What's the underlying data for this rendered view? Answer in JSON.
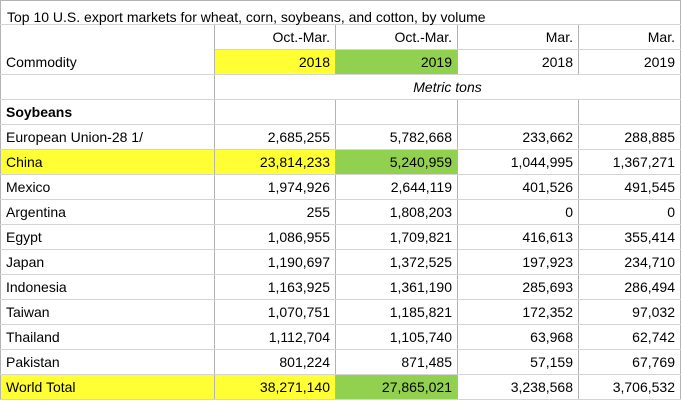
{
  "title": "Top 10 U.S. export markets for wheat, corn, soybeans, and cotton, by volume",
  "header": {
    "period_row": [
      "",
      "Oct.-Mar.",
      "Oct.-Mar.",
      "Mar.",
      "Mar."
    ],
    "year_row": [
      "Commodity",
      "2018",
      "2019",
      "2018",
      "2019"
    ],
    "unit_label": "Metric tons"
  },
  "section": {
    "name": "Soybeans"
  },
  "rows": [
    {
      "country": "European Union-28 1/",
      "v1": "2,685,255",
      "v2": "5,782,668",
      "v3": "233,662",
      "v4": "288,885",
      "highlight": false
    },
    {
      "country": "China",
      "v1": "23,814,233",
      "v2": "5,240,959",
      "v3": "1,044,995",
      "v4": "1,367,271",
      "highlight": true
    },
    {
      "country": "Mexico",
      "v1": "1,974,926",
      "v2": "2,644,119",
      "v3": "401,526",
      "v4": "491,545",
      "highlight": false
    },
    {
      "country": "Argentina",
      "v1": "255",
      "v2": "1,808,203",
      "v3": "0",
      "v4": "0",
      "highlight": false
    },
    {
      "country": "Egypt",
      "v1": "1,086,955",
      "v2": "1,709,821",
      "v3": "416,613",
      "v4": "355,414",
      "highlight": false
    },
    {
      "country": "Japan",
      "v1": "1,190,697",
      "v2": "1,372,525",
      "v3": "197,923",
      "v4": "234,710",
      "highlight": false
    },
    {
      "country": "Indonesia",
      "v1": "1,163,925",
      "v2": "1,361,190",
      "v3": "285,693",
      "v4": "286,494",
      "highlight": false
    },
    {
      "country": "Taiwan",
      "v1": "1,070,751",
      "v2": "1,185,821",
      "v3": "172,352",
      "v4": "97,032",
      "highlight": false
    },
    {
      "country": "Thailand",
      "v1": "1,112,704",
      "v2": "1,105,740",
      "v3": "63,968",
      "v4": "62,742",
      "highlight": false
    },
    {
      "country": "Pakistan",
      "v1": "801,224",
      "v2": "871,485",
      "v3": "57,159",
      "v4": "67,769",
      "highlight": false
    }
  ],
  "total": {
    "country": "World Total",
    "v1": "38,271,140",
    "v2": "27,865,021",
    "v3": "3,238,568",
    "v4": "3,706,532"
  },
  "colors": {
    "highlight_yellow": "#ffff33",
    "highlight_green": "#92d050",
    "grid_line": "#b3b3b3"
  }
}
